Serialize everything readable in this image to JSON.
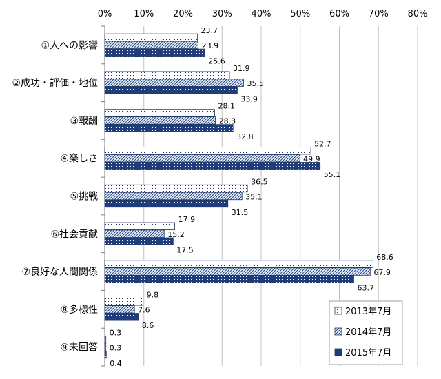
{
  "chart_data": {
    "type": "bar",
    "orientation": "horizontal",
    "categories": [
      "①人への影響",
      "②成功・評価・地位",
      "③報酬",
      "④楽しさ",
      "⑤挑戦",
      "⑥社会貢献",
      "⑦良好な人間関係",
      "⑧多様性",
      "⑨未回答"
    ],
    "series": [
      {
        "name": "2013年7月",
        "values": [
          23.7,
          31.9,
          28.1,
          52.7,
          36.5,
          17.9,
          68.6,
          9.8,
          0.3
        ],
        "pattern": "dots",
        "fill": "#ffffff",
        "mark": "#1f3864"
      },
      {
        "name": "2014年7月",
        "values": [
          23.9,
          35.5,
          28.3,
          49.9,
          35.1,
          15.2,
          67.9,
          7.6,
          0.3
        ],
        "pattern": "diagonal",
        "fill": "#ffffff",
        "mark": "#2f5597"
      },
      {
        "name": "2015年7月",
        "values": [
          25.6,
          33.9,
          32.8,
          55.1,
          31.5,
          17.5,
          63.7,
          8.6,
          0.4
        ],
        "pattern": "dots",
        "fill": "#1f3d7a",
        "mark": "#ffffff"
      }
    ],
    "xlim": [
      0,
      80
    ],
    "x_ticks": [
      "0%",
      "10%",
      "20%",
      "30%",
      "40%",
      "50%",
      "60%",
      "70%",
      "80%"
    ],
    "grid": true,
    "legend": "bottom-right",
    "colors": {
      "grid": "#c0c0c0",
      "axis": "#808080",
      "legend_border": "#a0a0a0"
    }
  }
}
